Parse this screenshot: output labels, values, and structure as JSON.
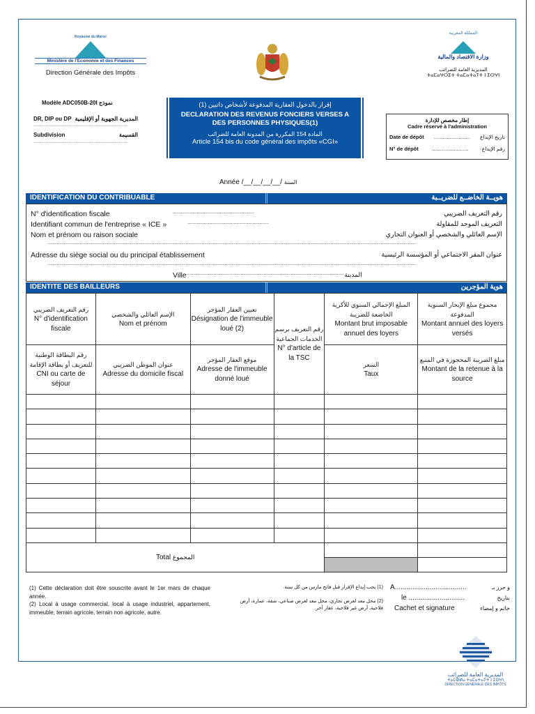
{
  "header": {
    "left_logo": {
      "kingdom": "Royaume du Maroc",
      "ministry": "Ministère de l'Economie et des Finances",
      "dgi": "Direction Générale des Impôts"
    },
    "right_logo": {
      "ar_kingdom": "المملكة المغربية",
      "ar_ministry": "وزارة الاقتصاد والمالية",
      "ar_dgi": "المديرية العامة للضرائب",
      "tifinagh": "ⵜⴰⵎⴰⵖⵔⵉⵜ ⵜⴰⵎⴰⵜⴰⵢⵜ ⵏ ⵉⵙⵖⵏ"
    },
    "model_label": "Modèle ADC050B-20I",
    "model_ar": "نموذج",
    "dr_label": "DR, DIP ou DP",
    "dr_ar": "المديرية الجهوية أو الإقليمية",
    "subdivision_label": "Subdivision",
    "subdivision_ar": "القسيمة",
    "dots": "....................................................................."
  },
  "title": {
    "ar": "إقرار بالدخول العقارية المدفوعة لأشخاص ذاتيين (1)",
    "fr": "DECLARATION DES REVENUS FONCIERS VERSES A DES PERSONNES PHYSIQUES(1)",
    "article_ar": "المادة 154 المكررة من المدونة العامة للضرائب",
    "article_fr": "Article 154 bis du code général des impôts «CGI»",
    "bg_color": "#0b55a4"
  },
  "admin": {
    "title_ar": "إطار مخصص للإدارة",
    "title_fr": "Cadre réservé à l'administration",
    "date_fr": "Date de dépôt",
    "date_ar": "تاريخ الإيداع",
    "num_fr": "N° de dépôt",
    "num_ar": "رقم الإيداع",
    "dots": "........................."
  },
  "year": {
    "fr": "Année /__/__/__/__/",
    "ar": "السنة"
  },
  "contribuable": {
    "title_fr": "IDENTIFICATION DU CONTRIBUABLE",
    "title_ar": "هويــة الخاضــع للضريــبة",
    "if_fr": "N° d'identification fiscale",
    "if_ar": "رقم التعريف الضريبي",
    "ice_fr": "Identifiant commun de l'entreprise « ICE »",
    "ice_ar": "التعريف الموحد للمقاولة",
    "nom_fr": "Nom et prénom ou raison sociale",
    "nom_ar": "الإسم العائلي والشخصي أو العنوان التجاري",
    "adr_fr": "Adresse du siège social ou du principal établissement",
    "adr_ar": "عنوان المقر الاجتماعي أو المؤسسة الرئيسية",
    "ville_fr": "Ville",
    "ville_ar": "المدينة",
    "dots_short": "............................................................",
    "dots_long": "................................................................................................................................................................................................................................................................................"
  },
  "bailleurs": {
    "title_fr": "IDENTITE DES BAILLEURS",
    "title_ar": "هوية المؤجرين",
    "head1": [
      {
        "ar": "رقم التعريف الضريبي",
        "fr": "N° d'identification fiscale"
      },
      {
        "ar": "الإسم العائلي والشخصي",
        "fr": "Nom et prénom"
      },
      {
        "ar": "تعيين العقار المؤجر",
        "fr": "Désignation de l'immeuble loué (2)"
      },
      {
        "ar": "رقم التعريف برسم الخدمات الجماعية",
        "fr": "N° d'article de la TSC"
      },
      {
        "ar": "المبلغ الإجمالي السنوي للأكرية الخاضعة للضريبة",
        "fr": "Montant brut imposable annuel des loyers"
      },
      {
        "ar": "مجموع مبلغ الإيجار السنوية المدفوعة",
        "fr": "Montant annuel des loyers versés"
      }
    ],
    "head2": [
      {
        "ar": "رقم البطاقة الوطنية للتعريف أو بطاقة الإقامة",
        "fr": "CNI ou carte de séjour"
      },
      {
        "ar": "عنوان الموطن الضريبي",
        "fr": "Adresse du domicile fiscal"
      },
      {
        "ar": "موقع العقار المؤجر",
        "fr": "Adresse de l'immeuble donné loué"
      },
      {
        "ar": "السعر",
        "fr": "Taux"
      },
      {
        "ar": "مبلغ الضريبة المحجوزة في المنبع",
        "fr": "Montant de la retenue à la source"
      }
    ],
    "total_fr": "Total",
    "total_ar": "المجموع"
  },
  "footer": {
    "note1_fr": "(1) Cette déclaration doit être souscrite avant le 1er mars de chaque année.",
    "note2_fr": "(2) Local à usage commercial, local à usage industriel, appartement, immeuble, terrain agricole, terrain non agricole, autre.",
    "note1_ar": "(1) يجب إيداع الإقرار قبل فاتح مارس من كل سنة.",
    "note2_ar": "(2) محل معد لغرض تجاري، محل معد لغرض صناعي، شقة، عمارة، أرض فلاحية، أرض غير فلاحية، عقار آخر.",
    "a_fr": "A.....................................",
    "a_ar": "و حرر بـ",
    "le_fr": "le .............................",
    "le_ar": "بتاريخ",
    "sign_fr": "Cachet et signature",
    "sign_ar": "خاتم و إمضاء"
  },
  "bottom_logo": {
    "ar": "المديرية العامة للضرائب",
    "tifinagh": "ⵜⴰⵎⵀⵍⴰ ⵜⴰⵎⴰⵜⴰⵢⵜ ⵏ ⵉⵙⵖⵏ",
    "fr": "DIRECTION GÉNÉRALE DES IMPÔTS"
  }
}
